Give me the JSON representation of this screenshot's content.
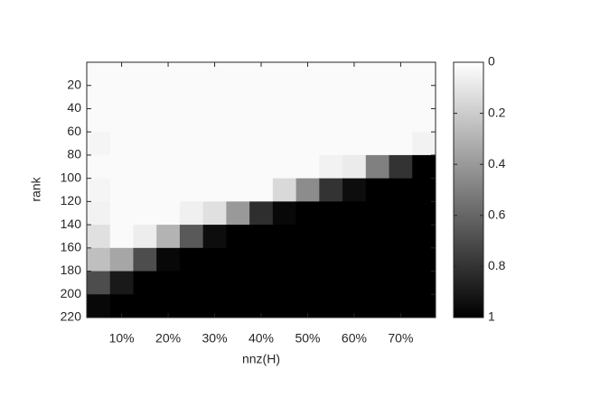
{
  "chart_data": {
    "type": "heatmap",
    "xlabel": "nnz(H)",
    "ylabel": "rank",
    "x": [
      5,
      10,
      15,
      20,
      25,
      30,
      35,
      40,
      45,
      50,
      55,
      60,
      65,
      70,
      75
    ],
    "y": [
      10,
      30,
      50,
      70,
      90,
      110,
      130,
      150,
      170,
      190,
      210
    ],
    "xlim": [
      2.5,
      77.5
    ],
    "ylim": [
      0,
      220
    ],
    "y_reversed": true,
    "xticks": [
      {
        "value": 10,
        "label": "10%"
      },
      {
        "value": 20,
        "label": "20%"
      },
      {
        "value": 30,
        "label": "30%"
      },
      {
        "value": 40,
        "label": "40%"
      },
      {
        "value": 50,
        "label": "50%"
      },
      {
        "value": 60,
        "label": "60%"
      },
      {
        "value": 70,
        "label": "70%"
      }
    ],
    "yticks": [
      20,
      40,
      60,
      80,
      100,
      120,
      140,
      160,
      180,
      200,
      220
    ],
    "z": [
      [
        0.02,
        0.02,
        0.02,
        0.02,
        0.02,
        0.02,
        0.02,
        0.02,
        0.02,
        0.02,
        0.02,
        0.02,
        0.02,
        0.02,
        0.02
      ],
      [
        0.02,
        0.02,
        0.02,
        0.02,
        0.02,
        0.02,
        0.02,
        0.02,
        0.02,
        0.02,
        0.02,
        0.02,
        0.02,
        0.02,
        0.02
      ],
      [
        0.02,
        0.02,
        0.02,
        0.02,
        0.02,
        0.02,
        0.02,
        0.02,
        0.02,
        0.02,
        0.02,
        0.02,
        0.02,
        0.02,
        0.02
      ],
      [
        0.04,
        0.02,
        0.02,
        0.02,
        0.02,
        0.02,
        0.02,
        0.02,
        0.02,
        0.02,
        0.02,
        0.02,
        0.02,
        0.02,
        0.05
      ],
      [
        0.02,
        0.02,
        0.02,
        0.02,
        0.02,
        0.02,
        0.02,
        0.02,
        0.02,
        0.02,
        0.05,
        0.08,
        0.5,
        0.8,
        1
      ],
      [
        0.04,
        0.02,
        0.02,
        0.02,
        0.02,
        0.02,
        0.02,
        0.02,
        0.15,
        0.45,
        0.8,
        0.95,
        1,
        1,
        1
      ],
      [
        0.05,
        0.02,
        0.02,
        0.02,
        0.06,
        0.12,
        0.4,
        0.82,
        0.97,
        1,
        1,
        1,
        1,
        1,
        1
      ],
      [
        0.12,
        0.02,
        0.07,
        0.3,
        0.65,
        0.95,
        1,
        1,
        1,
        1,
        1,
        1,
        1,
        1,
        1
      ],
      [
        0.25,
        0.35,
        0.7,
        0.97,
        1,
        1,
        1,
        1,
        1,
        1,
        1,
        1,
        1,
        1,
        1
      ],
      [
        0.7,
        0.9,
        1,
        1,
        1,
        1,
        1,
        1,
        1,
        1,
        1,
        1,
        1,
        1,
        1
      ],
      [
        0.97,
        1,
        1,
        1,
        1,
        1,
        1,
        1,
        1,
        1,
        1,
        1,
        1,
        1,
        1
      ]
    ],
    "colormap": "gray-reversed",
    "clim": [
      0,
      1
    ],
    "cticks": [
      0,
      0.2,
      0.4,
      0.6,
      0.8,
      1
    ]
  }
}
